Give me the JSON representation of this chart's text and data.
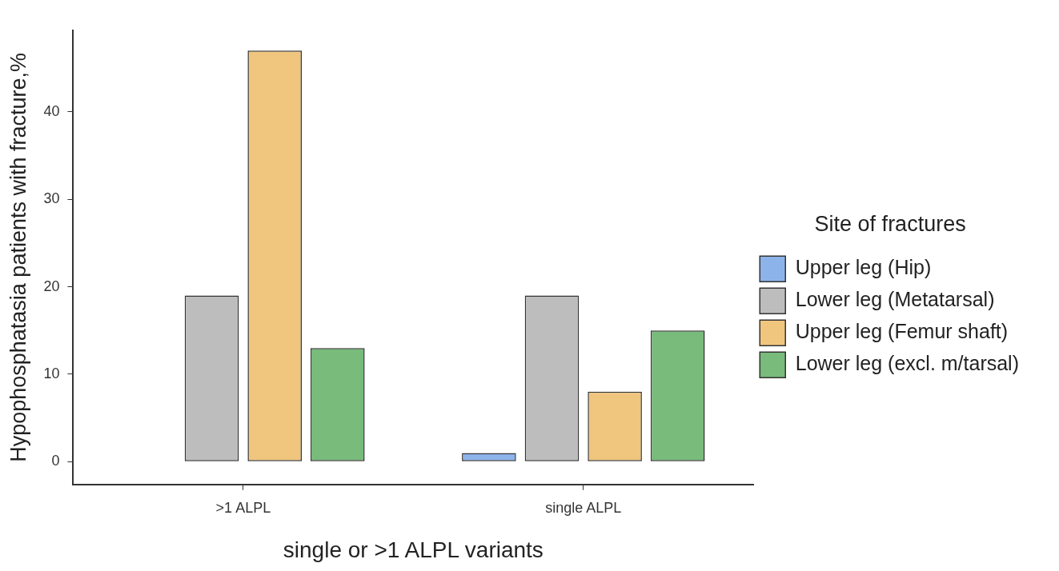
{
  "chart_data": {
    "type": "bar",
    "xlabel": "single or >1 ALPL variants",
    "ylabel": "Hypophosphatasia patients with fracture,%",
    "legend_title": "Site of fractures",
    "categories": [
      ">1 ALPL",
      "single ALPL"
    ],
    "series": [
      {
        "name": "Upper leg (Hip)",
        "color": "#8db4ea",
        "values": [
          0,
          1
        ]
      },
      {
        "name": "Lower leg (Metatarsal)",
        "color": "#bdbdbd",
        "values": [
          19,
          19
        ]
      },
      {
        "name": "Upper leg (Femur shaft)",
        "color": "#f0c57e",
        "values": [
          47,
          8
        ]
      },
      {
        "name": "Lower leg (excl. m/tarsal)",
        "color": "#78bb7b",
        "values": [
          13,
          15
        ]
      }
    ],
    "ylim": [
      -2.6,
      49.3
    ],
    "yticks": [
      0,
      10,
      20,
      30,
      40
    ],
    "grid": false,
    "legend": "right"
  }
}
